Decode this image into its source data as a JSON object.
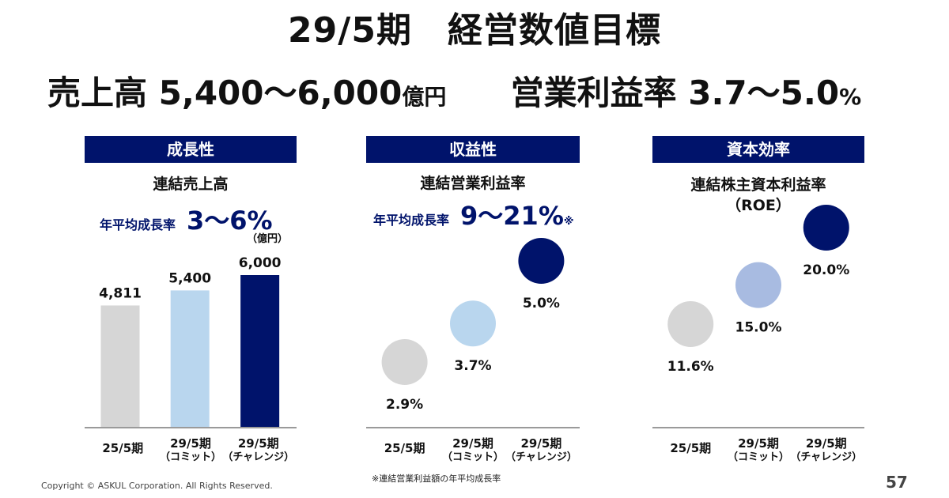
{
  "title": "29/5期　経営数値目標",
  "headline": {
    "sales_label": "売上高",
    "sales_value": "5,400〜6,000",
    "sales_unit": "億円",
    "margin_label": "営業利益率",
    "margin_value": "3.7〜5.0",
    "margin_unit": "%"
  },
  "colors": {
    "navy": "#00136b",
    "gray": "#d6d6d6",
    "light_blue": "#b9d6ee",
    "mid_blue": "#a8bbe1"
  },
  "chart_data": [
    {
      "type": "bar",
      "header": "成長性",
      "title": "連結売上高",
      "growth_label": "年平均成長率",
      "growth_value": "3〜6%",
      "unit": "（億円）",
      "categories": [
        [
          "25/5期",
          ""
        ],
        [
          "29/5期",
          "（コミット）"
        ],
        [
          "29/5期",
          "（チャレンジ）"
        ]
      ],
      "values": [
        4811,
        5400,
        6000
      ],
      "value_labels": [
        "4,811",
        "5,400",
        "6,000"
      ],
      "colors": [
        "#d6d6d6",
        "#b9d6ee",
        "#00136b"
      ]
    },
    {
      "type": "scatter",
      "header": "収益性",
      "title": "連結営業利益率",
      "growth_label": "年平均成長率",
      "growth_value": "9〜21%",
      "growth_note": "※",
      "categories": [
        [
          "25/5期",
          ""
        ],
        [
          "29/5期",
          "（コミット）"
        ],
        [
          "29/5期",
          "（チャレンジ）"
        ]
      ],
      "values": [
        2.9,
        3.7,
        5.0
      ],
      "value_labels": [
        "2.9%",
        "3.7%",
        "5.0%"
      ],
      "colors": [
        "#d6d6d6",
        "#b9d6ee",
        "#00136b"
      ],
      "footnote": "※連結営業利益額の年平均成長率"
    },
    {
      "type": "scatter",
      "header": "資本効率",
      "title": "連結株主資本利益率",
      "title2": "（ROE）",
      "categories": [
        [
          "25/5期",
          ""
        ],
        [
          "29/5期",
          "（コミット）"
        ],
        [
          "29/5期",
          "（チャレンジ）"
        ]
      ],
      "values": [
        11.6,
        15.0,
        20.0
      ],
      "value_labels": [
        "11.6%",
        "15.0%",
        "20.0%"
      ],
      "colors": [
        "#d6d6d6",
        "#a8bbe1",
        "#00136b"
      ]
    }
  ],
  "footer": "Copyright © ASKUL Corporation. All Rights Reserved.",
  "page_number": "57"
}
